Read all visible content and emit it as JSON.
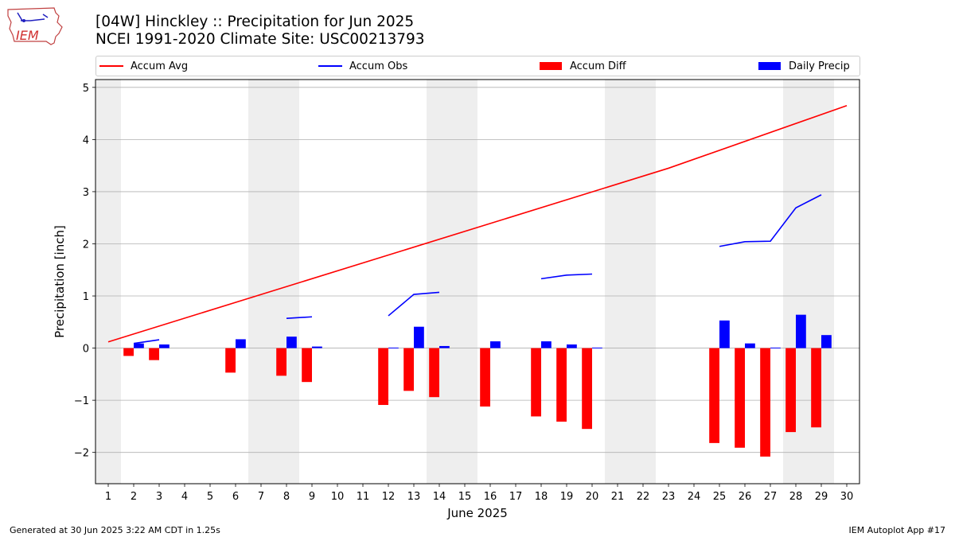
{
  "title": {
    "line1": "[04W] Hinckley :: Precipitation for Jun 2025",
    "line2": "NCEI 1991-2020 Climate Site: USC00213793"
  },
  "logo": {
    "text": "IEM"
  },
  "footer": {
    "left": "Generated at 30 Jun 2025 3:22 AM CDT in 1.25s",
    "right": "IEM Autoplot App #17"
  },
  "legend": {
    "accum_avg": "Accum Avg",
    "accum_obs": "Accum Obs",
    "accum_diff": "Accum Diff",
    "daily_precip": "Daily Precip"
  },
  "colors": {
    "accum_avg": "#ff0000",
    "accum_obs": "#0000ff",
    "accum_diff": "#ff0000",
    "daily_precip": "#0000ff",
    "weekend_shade": "#eeeeee",
    "grid": "#b0b0b0"
  },
  "chart_data": {
    "type": "bar",
    "xlabel": "June 2025",
    "ylabel": "Precipitation [inch]",
    "xlim": [
      0.5,
      30.5
    ],
    "ylim": [
      -2.6,
      5.15
    ],
    "x_ticks": [
      1,
      2,
      3,
      4,
      5,
      6,
      7,
      8,
      9,
      10,
      11,
      12,
      13,
      14,
      15,
      16,
      17,
      18,
      19,
      20,
      21,
      22,
      23,
      24,
      25,
      26,
      27,
      28,
      29,
      30
    ],
    "y_ticks": [
      -2,
      -1,
      0,
      1,
      2,
      3,
      4,
      5
    ],
    "grid": "horizontal",
    "legend_position": "top",
    "weekend_shading": [
      [
        0.5,
        1.5
      ],
      [
        6.5,
        8.5
      ],
      [
        13.5,
        15.5
      ],
      [
        20.5,
        22.5
      ],
      [
        27.5,
        29.5
      ]
    ],
    "accum_avg": {
      "x": [
        1,
        23,
        30
      ],
      "y": [
        0.12,
        3.45,
        4.65
      ]
    },
    "accum_obs_segments": [
      {
        "x": [
          2,
          3
        ],
        "y": [
          0.09,
          0.16
        ]
      },
      {
        "x": [
          8,
          9
        ],
        "y": [
          0.57,
          0.6
        ]
      },
      {
        "x": [
          12,
          13,
          14
        ],
        "y": [
          0.62,
          1.03,
          1.07
        ]
      },
      {
        "x": [
          18,
          19,
          20
        ],
        "y": [
          1.33,
          1.4,
          1.42
        ]
      },
      {
        "x": [
          25,
          26,
          27,
          28,
          29
        ],
        "y": [
          1.95,
          2.04,
          2.05,
          2.69,
          2.94
        ]
      }
    ],
    "accum_diff": [
      {
        "day": 2,
        "value": -0.15
      },
      {
        "day": 3,
        "value": -0.23
      },
      {
        "day": 6,
        "value": -0.47
      },
      {
        "day": 8,
        "value": -0.53
      },
      {
        "day": 9,
        "value": -0.65
      },
      {
        "day": 12,
        "value": -1.09
      },
      {
        "day": 13,
        "value": -0.82
      },
      {
        "day": 14,
        "value": -0.94
      },
      {
        "day": 16,
        "value": -1.12
      },
      {
        "day": 18,
        "value": -1.31
      },
      {
        "day": 19,
        "value": -1.41
      },
      {
        "day": 20,
        "value": -1.55
      },
      {
        "day": 25,
        "value": -1.82
      },
      {
        "day": 26,
        "value": -1.91
      },
      {
        "day": 27,
        "value": -2.08
      },
      {
        "day": 28,
        "value": -1.61
      },
      {
        "day": 29,
        "value": -1.52
      }
    ],
    "daily_precip": [
      {
        "day": 2,
        "value": 0.09
      },
      {
        "day": 3,
        "value": 0.07
      },
      {
        "day": 6,
        "value": 0.17
      },
      {
        "day": 8,
        "value": 0.22
      },
      {
        "day": 9,
        "value": 0.03
      },
      {
        "day": 12,
        "value": 0.01
      },
      {
        "day": 13,
        "value": 0.41
      },
      {
        "day": 14,
        "value": 0.04
      },
      {
        "day": 16,
        "value": 0.13
      },
      {
        "day": 18,
        "value": 0.13
      },
      {
        "day": 19,
        "value": 0.07
      },
      {
        "day": 20,
        "value": 0.01
      },
      {
        "day": 25,
        "value": 0.53
      },
      {
        "day": 26,
        "value": 0.09
      },
      {
        "day": 27,
        "value": 0.01
      },
      {
        "day": 28,
        "value": 0.64
      },
      {
        "day": 29,
        "value": 0.25
      }
    ]
  }
}
